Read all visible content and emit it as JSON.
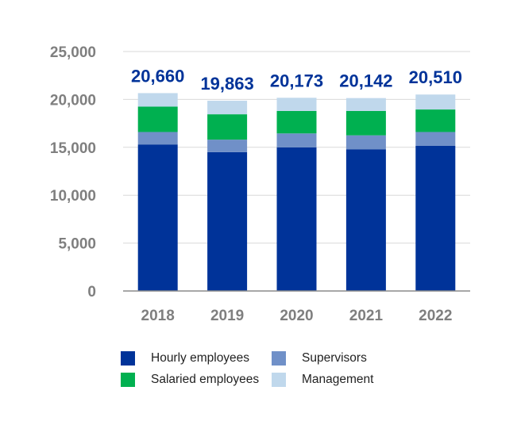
{
  "chart_data": {
    "type": "bar",
    "stacked": true,
    "categories": [
      "2018",
      "2019",
      "2020",
      "2021",
      "2022"
    ],
    "series": [
      {
        "name": "Hourly employees",
        "color": "#003399",
        "values": [
          15300,
          14500,
          15000,
          14800,
          15150
        ]
      },
      {
        "name": "Supervisors",
        "color": "#7090c8",
        "values": [
          1300,
          1300,
          1450,
          1450,
          1450
        ]
      },
      {
        "name": "Salaried employees",
        "color": "#00b050",
        "values": [
          2650,
          2650,
          2350,
          2550,
          2350
        ]
      },
      {
        "name": "Management",
        "color": "#c0d8ec",
        "values": [
          1410,
          1413,
          1373,
          1342,
          1560
        ]
      }
    ],
    "totals": [
      "20,660",
      "19,863",
      "20,173",
      "20,142",
      "20,510"
    ],
    "y_ticks": [
      "0",
      "5,000",
      "10,000",
      "15,000",
      "20,000",
      "25,000"
    ],
    "ylim": [
      0,
      25000
    ],
    "grid": true,
    "legend_position": "bottom",
    "colors": {
      "total_label": "#003399",
      "axis_text": "#7f7f7f",
      "grid": "#d9d9d9",
      "axis_line": "#8c8c8c"
    }
  },
  "legend": {
    "items": [
      {
        "name": "Hourly employees",
        "color": "#003399"
      },
      {
        "name": "Supervisors",
        "color": "#7090c8"
      },
      {
        "name": "Salaried employees",
        "color": "#00b050"
      },
      {
        "name": "Management",
        "color": "#c0d8ec"
      }
    ]
  }
}
